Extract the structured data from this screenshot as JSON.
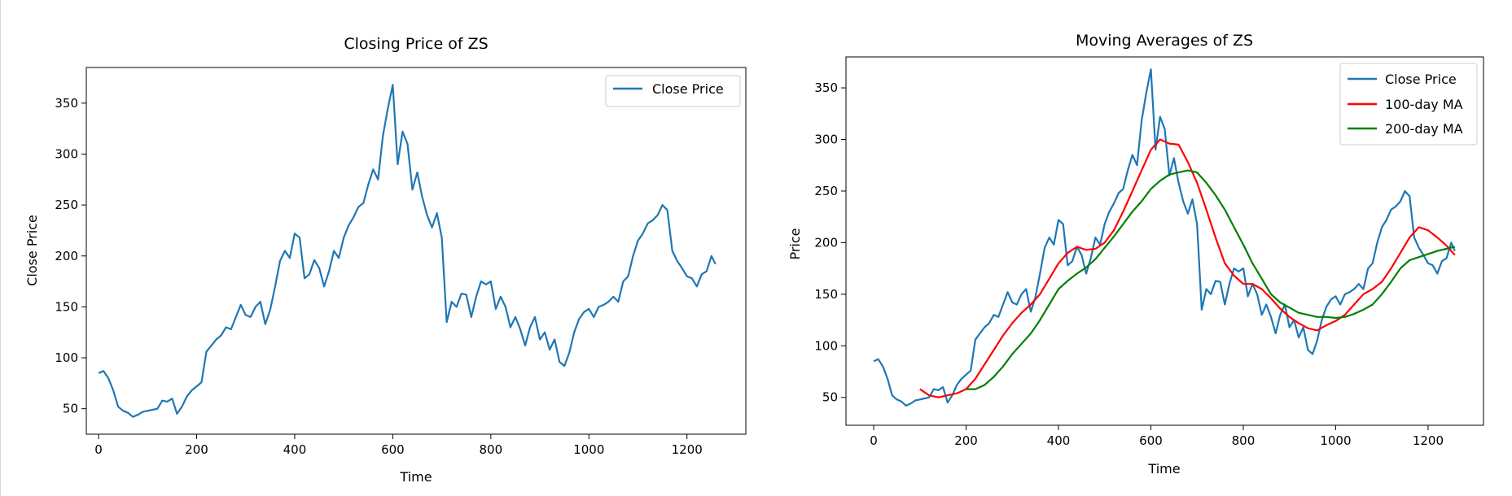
{
  "chart_data": [
    {
      "type": "line",
      "title": "Closing Price of ZS",
      "xlabel": "Time",
      "ylabel": "Close Price",
      "xlim": [
        -25,
        1320
      ],
      "ylim": [
        25,
        385
      ],
      "xticks": [
        0,
        200,
        400,
        600,
        800,
        1000,
        1200
      ],
      "yticks": [
        50,
        100,
        150,
        200,
        250,
        300,
        350
      ],
      "grid": false,
      "legend_position": "upper right",
      "series": [
        {
          "name": "Close Price",
          "color": "#1f77b4",
          "x": [
            0,
            10,
            20,
            30,
            40,
            50,
            60,
            70,
            80,
            90,
            100,
            110,
            120,
            130,
            140,
            150,
            160,
            170,
            180,
            190,
            200,
            210,
            220,
            230,
            240,
            250,
            260,
            270,
            280,
            290,
            300,
            310,
            320,
            330,
            340,
            350,
            360,
            370,
            380,
            390,
            400,
            410,
            420,
            430,
            440,
            450,
            460,
            470,
            480,
            490,
            500,
            510,
            520,
            530,
            540,
            550,
            560,
            570,
            580,
            590,
            600,
            610,
            620,
            630,
            640,
            650,
            660,
            670,
            680,
            690,
            700,
            710,
            720,
            730,
            740,
            750,
            760,
            770,
            780,
            790,
            800,
            810,
            820,
            830,
            840,
            850,
            860,
            870,
            880,
            890,
            900,
            910,
            920,
            930,
            940,
            950,
            960,
            970,
            980,
            990,
            1000,
            1010,
            1020,
            1030,
            1040,
            1050,
            1060,
            1070,
            1080,
            1090,
            1100,
            1110,
            1120,
            1130,
            1140,
            1150,
            1160,
            1170,
            1180,
            1190,
            1200,
            1210,
            1220,
            1230,
            1240,
            1250,
            1258
          ],
          "values": [
            85,
            87,
            80,
            68,
            52,
            48,
            46,
            42,
            44,
            47,
            48,
            49,
            50,
            58,
            57,
            60,
            45,
            52,
            62,
            68,
            72,
            76,
            106,
            112,
            118,
            122,
            130,
            128,
            140,
            152,
            142,
            140,
            150,
            155,
            133,
            147,
            170,
            195,
            205,
            198,
            222,
            218,
            178,
            182,
            196,
            188,
            170,
            185,
            205,
            198,
            218,
            230,
            238,
            248,
            252,
            270,
            285,
            275,
            318,
            345,
            368,
            290,
            322,
            310,
            265,
            282,
            258,
            240,
            228,
            242,
            218,
            135,
            155,
            150,
            163,
            162,
            140,
            160,
            175,
            172,
            175,
            148,
            160,
            150,
            130,
            140,
            128,
            112,
            130,
            140,
            118,
            125,
            108,
            118,
            96,
            92,
            105,
            125,
            138,
            145,
            148,
            140,
            150,
            152,
            155,
            160,
            155,
            175,
            180,
            200,
            215,
            222,
            232,
            235,
            240,
            250,
            245,
            205,
            195,
            188,
            180,
            178,
            170,
            182,
            185,
            200,
            192
          ]
        }
      ]
    },
    {
      "type": "line",
      "title": "Moving Averages of ZS",
      "xlabel": "Time",
      "ylabel": "Price",
      "xlim": [
        -60,
        1320
      ],
      "ylim": [
        23,
        380
      ],
      "xticks": [
        0,
        200,
        400,
        600,
        800,
        1000,
        1200
      ],
      "yticks": [
        50,
        100,
        150,
        200,
        250,
        300,
        350
      ],
      "grid": false,
      "legend_position": "upper right",
      "series": [
        {
          "name": "Close Price",
          "color": "#1f77b4",
          "x": [
            0,
            10,
            20,
            30,
            40,
            50,
            60,
            70,
            80,
            90,
            100,
            110,
            120,
            130,
            140,
            150,
            160,
            170,
            180,
            190,
            200,
            210,
            220,
            230,
            240,
            250,
            260,
            270,
            280,
            290,
            300,
            310,
            320,
            330,
            340,
            350,
            360,
            370,
            380,
            390,
            400,
            410,
            420,
            430,
            440,
            450,
            460,
            470,
            480,
            490,
            500,
            510,
            520,
            530,
            540,
            550,
            560,
            570,
            580,
            590,
            600,
            610,
            620,
            630,
            640,
            650,
            660,
            670,
            680,
            690,
            700,
            710,
            720,
            730,
            740,
            750,
            760,
            770,
            780,
            790,
            800,
            810,
            820,
            830,
            840,
            850,
            860,
            870,
            880,
            890,
            900,
            910,
            920,
            930,
            940,
            950,
            960,
            970,
            980,
            990,
            1000,
            1010,
            1020,
            1030,
            1040,
            1050,
            1060,
            1070,
            1080,
            1090,
            1100,
            1110,
            1120,
            1130,
            1140,
            1150,
            1160,
            1170,
            1180,
            1190,
            1200,
            1210,
            1220,
            1230,
            1240,
            1250,
            1258
          ],
          "values": [
            85,
            87,
            80,
            68,
            52,
            48,
            46,
            42,
            44,
            47,
            48,
            49,
            50,
            58,
            57,
            60,
            45,
            52,
            62,
            68,
            72,
            76,
            106,
            112,
            118,
            122,
            130,
            128,
            140,
            152,
            142,
            140,
            150,
            155,
            133,
            147,
            170,
            195,
            205,
            198,
            222,
            218,
            178,
            182,
            196,
            188,
            170,
            185,
            205,
            198,
            218,
            230,
            238,
            248,
            252,
            270,
            285,
            275,
            318,
            345,
            368,
            290,
            322,
            310,
            265,
            282,
            258,
            240,
            228,
            242,
            218,
            135,
            155,
            150,
            163,
            162,
            140,
            160,
            175,
            172,
            175,
            148,
            160,
            150,
            130,
            140,
            128,
            112,
            130,
            140,
            118,
            125,
            108,
            118,
            96,
            92,
            105,
            125,
            138,
            145,
            148,
            140,
            150,
            152,
            155,
            160,
            155,
            175,
            180,
            200,
            215,
            222,
            232,
            235,
            240,
            250,
            245,
            205,
            195,
            188,
            180,
            178,
            170,
            182,
            185,
            200,
            192
          ]
        },
        {
          "name": "100-day MA",
          "color": "#ff0000",
          "x": [
            100,
            120,
            140,
            160,
            180,
            200,
            220,
            240,
            260,
            280,
            300,
            320,
            340,
            360,
            380,
            400,
            420,
            440,
            460,
            480,
            500,
            520,
            540,
            560,
            580,
            600,
            620,
            640,
            660,
            680,
            700,
            720,
            740,
            760,
            780,
            800,
            820,
            840,
            860,
            880,
            900,
            920,
            940,
            960,
            980,
            1000,
            1020,
            1040,
            1060,
            1080,
            1100,
            1120,
            1140,
            1160,
            1180,
            1200,
            1220,
            1240,
            1258
          ],
          "values": [
            58,
            52,
            50,
            52,
            54,
            58,
            68,
            82,
            96,
            110,
            122,
            132,
            140,
            150,
            165,
            180,
            190,
            196,
            193,
            194,
            200,
            212,
            230,
            250,
            270,
            290,
            300,
            296,
            295,
            278,
            258,
            232,
            205,
            180,
            168,
            160,
            160,
            155,
            146,
            136,
            128,
            122,
            117,
            115,
            120,
            124,
            130,
            140,
            150,
            155,
            162,
            175,
            190,
            205,
            215,
            212,
            205,
            197,
            188
          ]
        },
        {
          "name": "200-day MA",
          "color": "#008000",
          "x": [
            200,
            220,
            240,
            260,
            280,
            300,
            320,
            340,
            360,
            380,
            400,
            420,
            440,
            460,
            480,
            500,
            520,
            540,
            560,
            580,
            600,
            620,
            640,
            660,
            680,
            700,
            720,
            740,
            760,
            780,
            800,
            820,
            840,
            860,
            880,
            900,
            920,
            940,
            960,
            980,
            1000,
            1020,
            1040,
            1060,
            1080,
            1100,
            1120,
            1140,
            1160,
            1180,
            1200,
            1220,
            1240,
            1258
          ],
          "values": [
            58,
            58,
            62,
            70,
            80,
            92,
            102,
            112,
            125,
            140,
            155,
            163,
            170,
            176,
            184,
            195,
            206,
            218,
            230,
            240,
            252,
            260,
            266,
            268,
            270,
            268,
            258,
            246,
            232,
            215,
            198,
            180,
            165,
            150,
            142,
            137,
            132,
            130,
            128,
            128,
            127,
            128,
            131,
            135,
            140,
            150,
            162,
            175,
            183,
            186,
            189,
            192,
            194,
            196
          ]
        }
      ]
    }
  ]
}
